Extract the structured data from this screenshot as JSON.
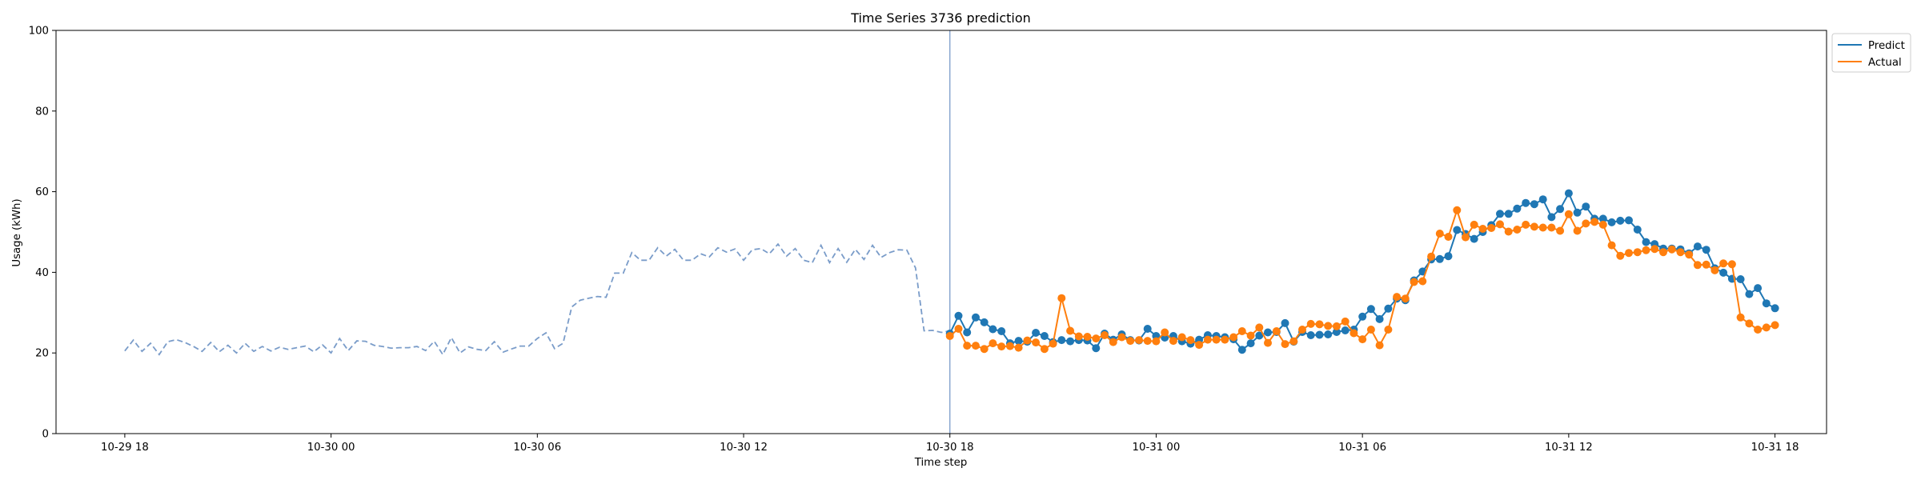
{
  "chart_data": {
    "type": "line",
    "title": "Time Series 3736 prediction",
    "xlabel": "Time step",
    "ylabel": "Usage (kWh)",
    "ylim": [
      0,
      100
    ],
    "yticks": [
      0,
      20,
      40,
      60,
      80,
      100
    ],
    "xlim": [
      "2023-10-29T16:00",
      "2023-10-31T19:30"
    ],
    "xticks": [
      {
        "t": "2023-10-29T18:00",
        "label": "10-29 18"
      },
      {
        "t": "2023-10-30T00:00",
        "label": "10-30 00"
      },
      {
        "t": "2023-10-30T06:00",
        "label": "10-30 06"
      },
      {
        "t": "2023-10-30T12:00",
        "label": "10-30 12"
      },
      {
        "t": "2023-10-30T18:00",
        "label": "10-30 18"
      },
      {
        "t": "2023-10-31T00:00",
        "label": "10-31 00"
      },
      {
        "t": "2023-10-31T06:00",
        "label": "10-31 06"
      },
      {
        "t": "2023-10-31T12:00",
        "label": "10-31 12"
      },
      {
        "t": "2023-10-31T18:00",
        "label": "10-31 18"
      }
    ],
    "forecast_start": "2023-10-30T18:00",
    "grid": false,
    "legend_position": "top-right",
    "colors": {
      "predict": "#1f77b4",
      "actual": "#ff7f0e",
      "history": "#7a9cc9",
      "divider": "#7a9cc9"
    },
    "history": {
      "start": "2023-10-29T18:00",
      "step_minutes": 15,
      "values": [
        20.5,
        23.2,
        20.4,
        22.4,
        19.6,
        22.8,
        23.3,
        22.6,
        21.6,
        20.4,
        22.6,
        20.3,
        21.9,
        20.0,
        22.4,
        20.4,
        21.6,
        20.5,
        21.4,
        20.9,
        21.3,
        21.7,
        20.3,
        22.0,
        20.0,
        23.6,
        20.6,
        23.0,
        22.9,
        21.9,
        21.6,
        21.2,
        21.3,
        21.3,
        21.6,
        20.6,
        22.9,
        19.6,
        23.8,
        20.0,
        21.5,
        20.9,
        20.6,
        22.8,
        20.2,
        21.0,
        21.7,
        21.7,
        23.6,
        25.0,
        21.1,
        22.4,
        31.4,
        33.1,
        33.6,
        34.0,
        33.8,
        39.8,
        39.8,
        44.9,
        43.0,
        43.0,
        46.1,
        44.0,
        45.7,
        43.0,
        43.0,
        44.6,
        43.8,
        46.1,
        45.0,
        45.8,
        43.0,
        45.6,
        45.9,
        44.6,
        47.0,
        44.0,
        45.9,
        43.0,
        42.4,
        46.7,
        42.4,
        45.9,
        42.5,
        45.7,
        43.2,
        46.7,
        43.7,
        44.9,
        45.6,
        45.5,
        41.1,
        25.5,
        25.6,
        25.1,
        25.5
      ]
    },
    "series": [
      {
        "name": "Predict",
        "start": "2023-10-30T18:00",
        "step_minutes": 15,
        "values": [
          24.8,
          29.2,
          25.1,
          28.8,
          27.6,
          25.9,
          25.4,
          22.4,
          23.0,
          22.8,
          25.0,
          24.2,
          22.7,
          23.2,
          22.9,
          23.2,
          23.1,
          21.2,
          24.8,
          23.3,
          24.6,
          23.2,
          23.1,
          26.0,
          24.2,
          23.8,
          24.2,
          22.9,
          22.3,
          23.3,
          24.4,
          24.2,
          23.9,
          23.4,
          20.8,
          22.4,
          24.3,
          25.1,
          25.2,
          27.4,
          22.8,
          25.2,
          24.4,
          24.5,
          24.6,
          25.2,
          25.6,
          25.8,
          29.0,
          30.9,
          28.4,
          31.0,
          33.5,
          33.1,
          38.0,
          40.2,
          43.2,
          43.3,
          44.0,
          50.5,
          49.5,
          48.3,
          50.0,
          51.7,
          54.5,
          54.5,
          55.8,
          57.2,
          56.9,
          58.1,
          53.7,
          55.7,
          59.6,
          54.8,
          56.3,
          53.3,
          53.3,
          52.4,
          52.8,
          52.9,
          50.6,
          47.5,
          47.0,
          45.9,
          45.9,
          45.7,
          44.7,
          46.4,
          45.6,
          41.0,
          39.9,
          38.4,
          38.3,
          34.6,
          36.1,
          32.3,
          31.1
        ]
      },
      {
        "name": "Actual",
        "start": "2023-10-30T18:00",
        "step_minutes": 15,
        "values": [
          24.2,
          26.0,
          21.8,
          21.8,
          21.0,
          22.4,
          21.6,
          21.7,
          21.3,
          23.1,
          22.6,
          21.0,
          22.3,
          33.6,
          25.5,
          24.1,
          24.0,
          23.6,
          24.4,
          22.7,
          23.9,
          23.0,
          23.2,
          23.0,
          22.9,
          25.1,
          23.0,
          23.9,
          23.2,
          22.0,
          23.3,
          23.3,
          23.3,
          23.9,
          25.4,
          24.3,
          26.3,
          22.5,
          25.4,
          22.2,
          22.9,
          25.8,
          27.2,
          27.1,
          26.7,
          26.6,
          27.8,
          24.9,
          23.4,
          25.8,
          21.9,
          25.8,
          33.9,
          33.5,
          37.6,
          37.8,
          43.9,
          49.6,
          48.8,
          55.4,
          48.7,
          51.8,
          50.8,
          51.0,
          51.9,
          50.1,
          50.6,
          51.8,
          51.3,
          51.1,
          51.1,
          50.3,
          54.4,
          50.3,
          52.1,
          52.5,
          51.8,
          46.7,
          44.1,
          44.8,
          45.0,
          45.5,
          45.8,
          45.0,
          45.7,
          45.0,
          44.4,
          41.8,
          41.9,
          40.5,
          42.2,
          42.0,
          28.8,
          27.3,
          25.8,
          26.3,
          26.9
        ]
      }
    ]
  }
}
